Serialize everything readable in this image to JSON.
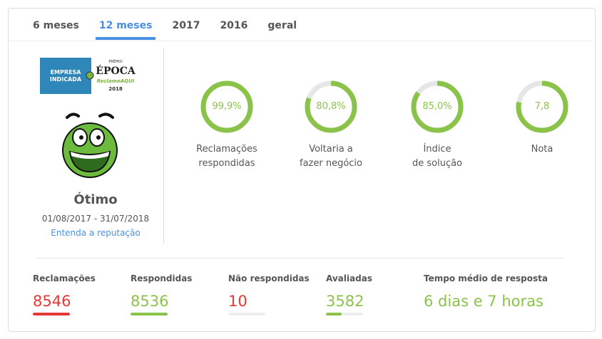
{
  "tabs": [
    {
      "label": "6 meses"
    },
    {
      "label": "12 meses",
      "active": true
    },
    {
      "label": "2017"
    },
    {
      "label": "2016"
    },
    {
      "label": "geral"
    }
  ],
  "badge": {
    "text": "EMPRESA INDICADA",
    "award": "PRÊMIO ÉPOCA ReclameAQUI 2018"
  },
  "reputation": {
    "level": "Ótimo",
    "period": "01/08/2017 - 31/07/2018",
    "link": "Entenda a reputação"
  },
  "metrics": [
    {
      "value": "99,9%",
      "percent": 99.9,
      "label1": "Reclamações",
      "label2": "respondidas"
    },
    {
      "value": "80,8%",
      "percent": 80.8,
      "label1": "Voltaria a",
      "label2": "fazer negócio"
    },
    {
      "value": "85,0%",
      "percent": 85.0,
      "label1": "Índice",
      "label2": "de solução"
    },
    {
      "value": "7,8",
      "percent": 78,
      "label1": "Nota",
      "label2": ""
    }
  ],
  "stats": [
    {
      "label": "Reclamações",
      "value": "8546",
      "color": "#e53935",
      "fill": 100
    },
    {
      "label": "Respondidas",
      "value": "8536",
      "color": "#8bc34a",
      "fill": 100
    },
    {
      "label": "Não respondidas",
      "value": "10",
      "color": "#e53935",
      "fill": 0
    },
    {
      "label": "Avaliadas",
      "value": "3582",
      "color": "#8bc34a",
      "fill": 42
    },
    {
      "label": "Tempo médio de resposta",
      "value": "6 dias e 7 horas",
      "color": "#8bc34a"
    }
  ],
  "colors": {
    "accent": "#4a90e2",
    "good": "#8bc34a",
    "bad": "#e53935",
    "track": "#e6e6e6"
  }
}
